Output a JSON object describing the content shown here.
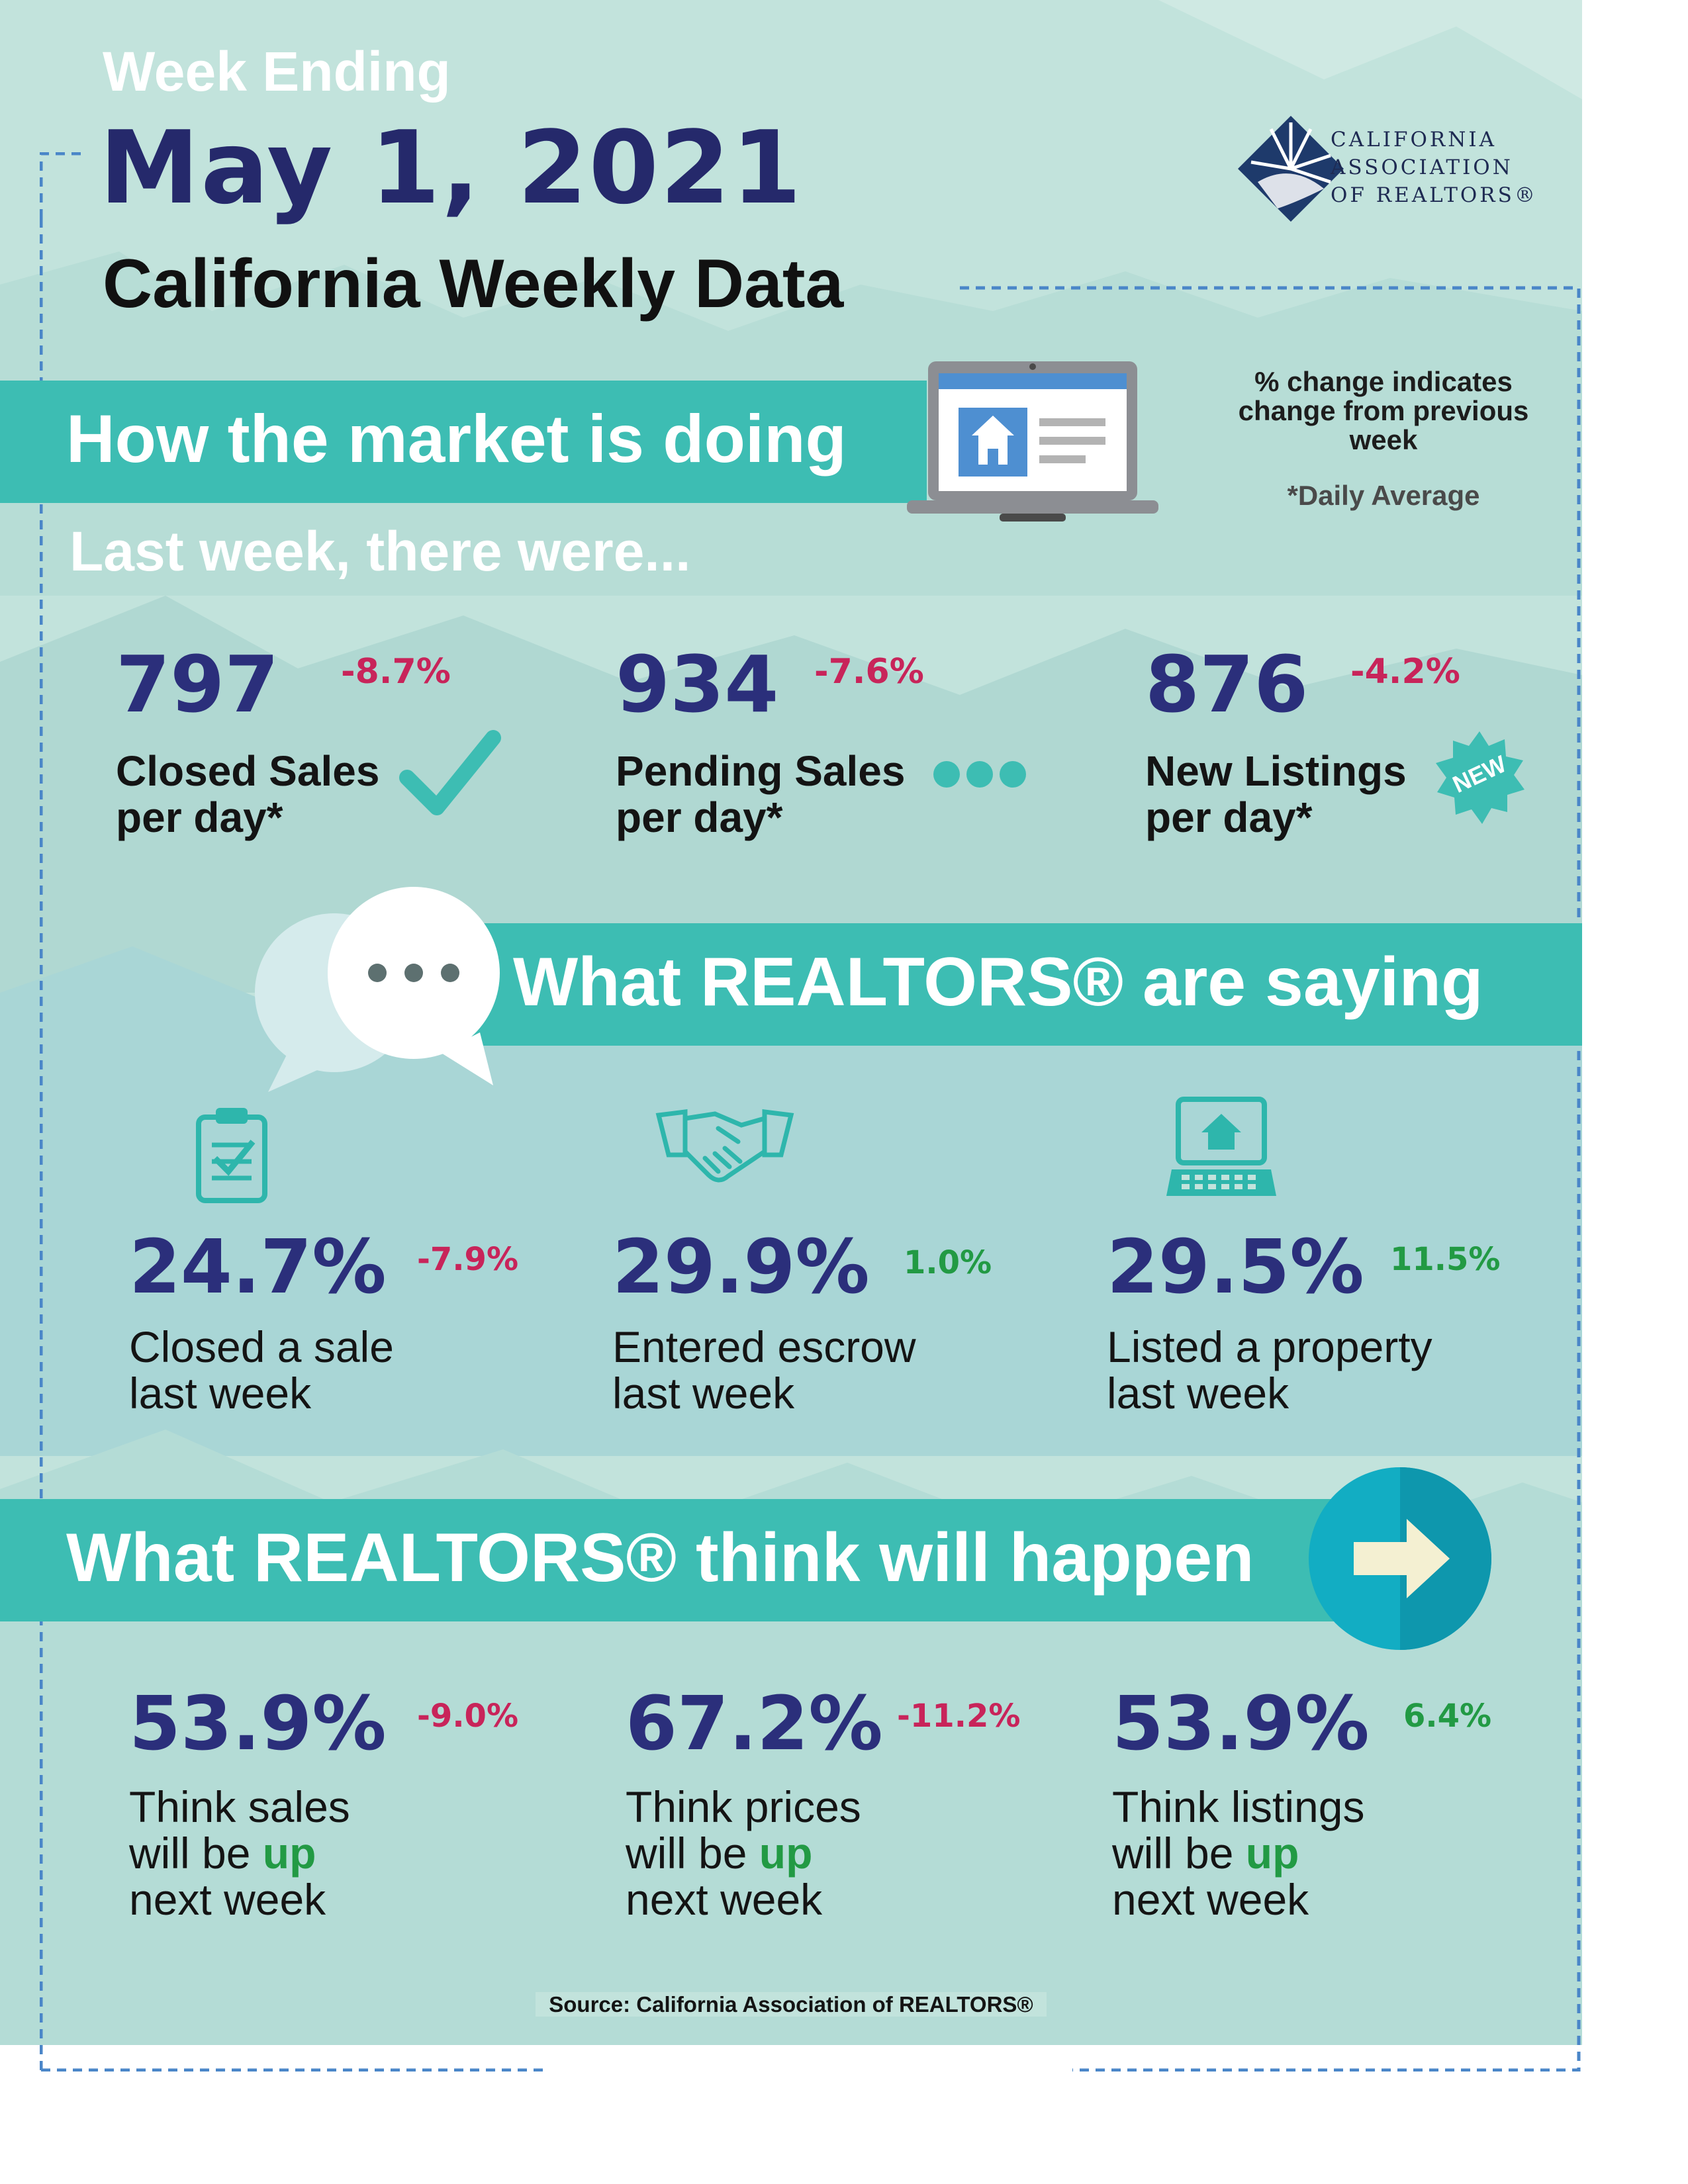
{
  "header": {
    "week_label": "Week Ending",
    "date": "May 1, 2021",
    "title": "California Weekly Data"
  },
  "logo": {
    "line1": "CALIFORNIA",
    "line2": "ASSOCIATION",
    "line3": "OF REALTORS®"
  },
  "market": {
    "heading": "How the market is doing",
    "note": "% change indicates change from previous week",
    "note_daily": "*Daily Average",
    "intro": "Last week, there were...",
    "stats": [
      {
        "value": "797",
        "change": "-8.7%",
        "label1": "Closed Sales",
        "label2": "per day*"
      },
      {
        "value": "934",
        "change": "-7.6%",
        "label1": "Pending Sales",
        "label2": "per day*"
      },
      {
        "value": "876",
        "change": "-4.2%",
        "label1": "New Listings",
        "label2": "per day*"
      }
    ],
    "new_badge": "NEW"
  },
  "saying": {
    "heading": "What REALTORS® are saying",
    "stats": [
      {
        "value": "24.7%",
        "change": "-7.9%",
        "label1": "Closed a sale",
        "label2": "last week"
      },
      {
        "value": "29.9%",
        "change": "1.0%",
        "label1": "Entered escrow",
        "label2": "last week"
      },
      {
        "value": "29.5%",
        "change": "11.5%",
        "label1": "Listed a property",
        "label2": "last week"
      }
    ]
  },
  "think": {
    "heading": "What REALTORS® think will happen",
    "stats": [
      {
        "value": "53.9%",
        "change": "-9.0%",
        "label1": "Think sales",
        "label2a": "will be ",
        "label2b": "up",
        "label3": "next week"
      },
      {
        "value": "67.2%",
        "change": "-11.2%",
        "label1": "Think prices",
        "label2a": "will be ",
        "label2b": "up",
        "label3": "next week"
      },
      {
        "value": "53.9%",
        "change": "6.4%",
        "label1": "Think listings",
        "label2a": "will be ",
        "label2b": "up",
        "label3": "next week"
      }
    ]
  },
  "source": "Source: California Association of REALTORS®",
  "colors": {
    "navy": "#2b2f7b",
    "teal": "#3dbdb3",
    "negative": "#c8245a",
    "positive": "#229a44"
  }
}
